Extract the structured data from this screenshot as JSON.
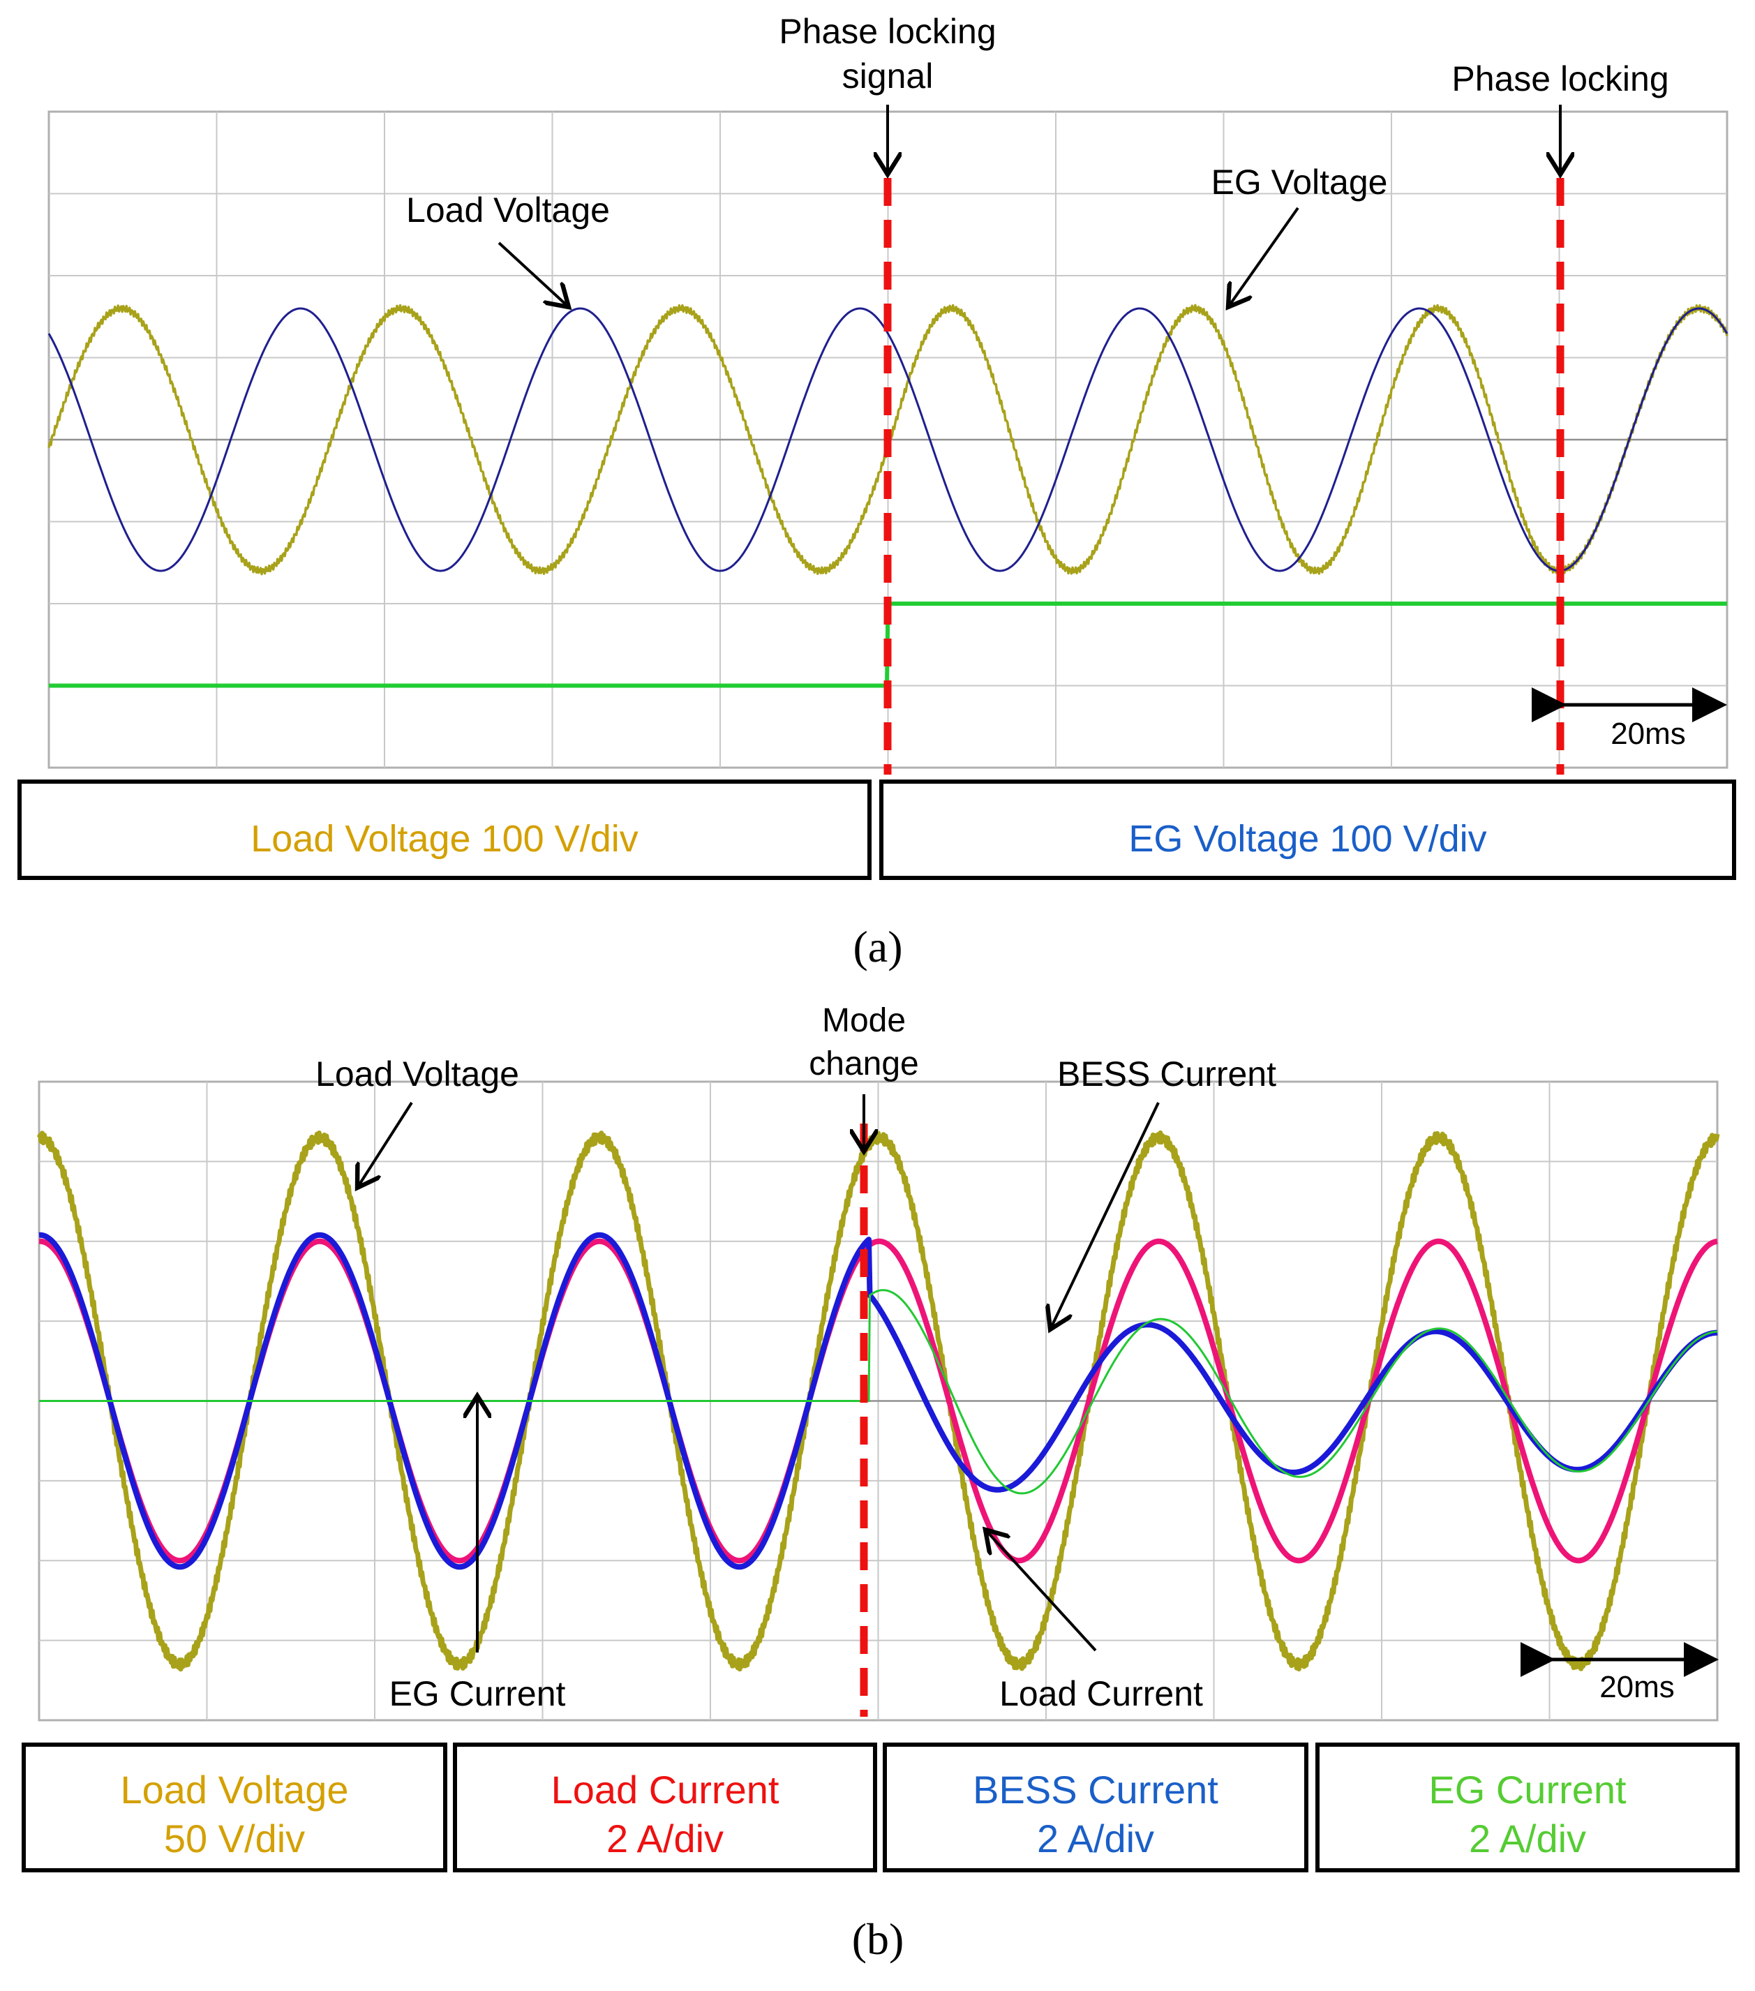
{
  "colors": {
    "load_voltage": "#a8a21a",
    "eg_voltage": "#1f1f8f",
    "phase_signal": "#22cc33",
    "marker_line": "#ee1111",
    "load_current": "#ee1477",
    "bess_current": "#1a1ad8",
    "eg_current": "#22c833",
    "grid": "#c8c8c8",
    "box_text_load_voltage": "#d4a000",
    "box_text_eg_voltage": "#1a5fc8",
    "box_text_load_current": "#ee1111",
    "box_text_bess_current": "#1a5fc8",
    "box_text_eg_current": "#55cc33"
  },
  "chart_data": [
    {
      "panel": "(a)",
      "type": "line",
      "x_unit": "ms",
      "time_per_div_ms": 10,
      "xlim": [
        0,
        100
      ],
      "ylim": [
        -4,
        4
      ],
      "series": [
        {
          "name": "Load Voltage",
          "amplitude_div": 1.6,
          "frequency_hz": 60,
          "note_shift_ms": 6.0,
          "lock_start_ms": 50,
          "lock_end_ms": 90
        },
        {
          "name": "EG Voltage",
          "amplitude_div": 1.6,
          "frequency_hz": 60
        },
        {
          "name": "phase locking signal",
          "low_div": -3.0,
          "high_div": -2.0,
          "step_at_ms": 50
        }
      ],
      "annotations": {
        "phase_locking_signal_line1": "Phase locking",
        "phase_locking_signal_line2": "signal",
        "phase_locking": "Phase locking",
        "load_voltage": "Load Voltage",
        "eg_voltage": "EG Voltage",
        "time_scale": "20ms"
      },
      "marker_lines_ms": [
        50,
        90
      ],
      "scale_boxes": [
        {
          "text": "Load Voltage 100 V/div"
        },
        {
          "text": "EG Voltage 100 V/div"
        }
      ]
    },
    {
      "panel": "(b)",
      "type": "line",
      "x_unit": "ms",
      "time_per_div_ms": 10,
      "xlim": [
        0,
        100
      ],
      "ylim": [
        -4,
        4
      ],
      "series": [
        {
          "name": "Load Voltage",
          "amplitude_div": 3.3,
          "frequency_hz": 60
        },
        {
          "name": "Load Current",
          "amplitude_div": 2.0,
          "frequency_hz": 60,
          "after_mode_change_amplitude_div": 2.0
        },
        {
          "name": "BESS Current",
          "amplitude_div_before": 2.1,
          "amplitude_div_after": 0.85
        },
        {
          "name": "EG Current",
          "amplitude_div_before": 0.0,
          "amplitude_div_after": 0.85
        }
      ],
      "annotations": {
        "mode_change_line1": "Mode",
        "mode_change_line2": "change",
        "load_voltage": "Load Voltage",
        "bess_current": "BESS Current",
        "eg_current": "EG Current",
        "load_current": "Load Current",
        "time_scale": "20ms"
      },
      "marker_lines_ms": [
        49.5
      ],
      "scale_boxes": [
        {
          "line1": "Load Voltage",
          "line2": "50 V/div"
        },
        {
          "line1": "Load Current",
          "line2": "2 A/div"
        },
        {
          "line1": "BESS Current",
          "line2": "2 A/div"
        },
        {
          "line1": "EG Current",
          "line2": "2 A/div"
        }
      ]
    }
  ],
  "panel_labels": {
    "a": "(a)",
    "b": "(b)"
  }
}
